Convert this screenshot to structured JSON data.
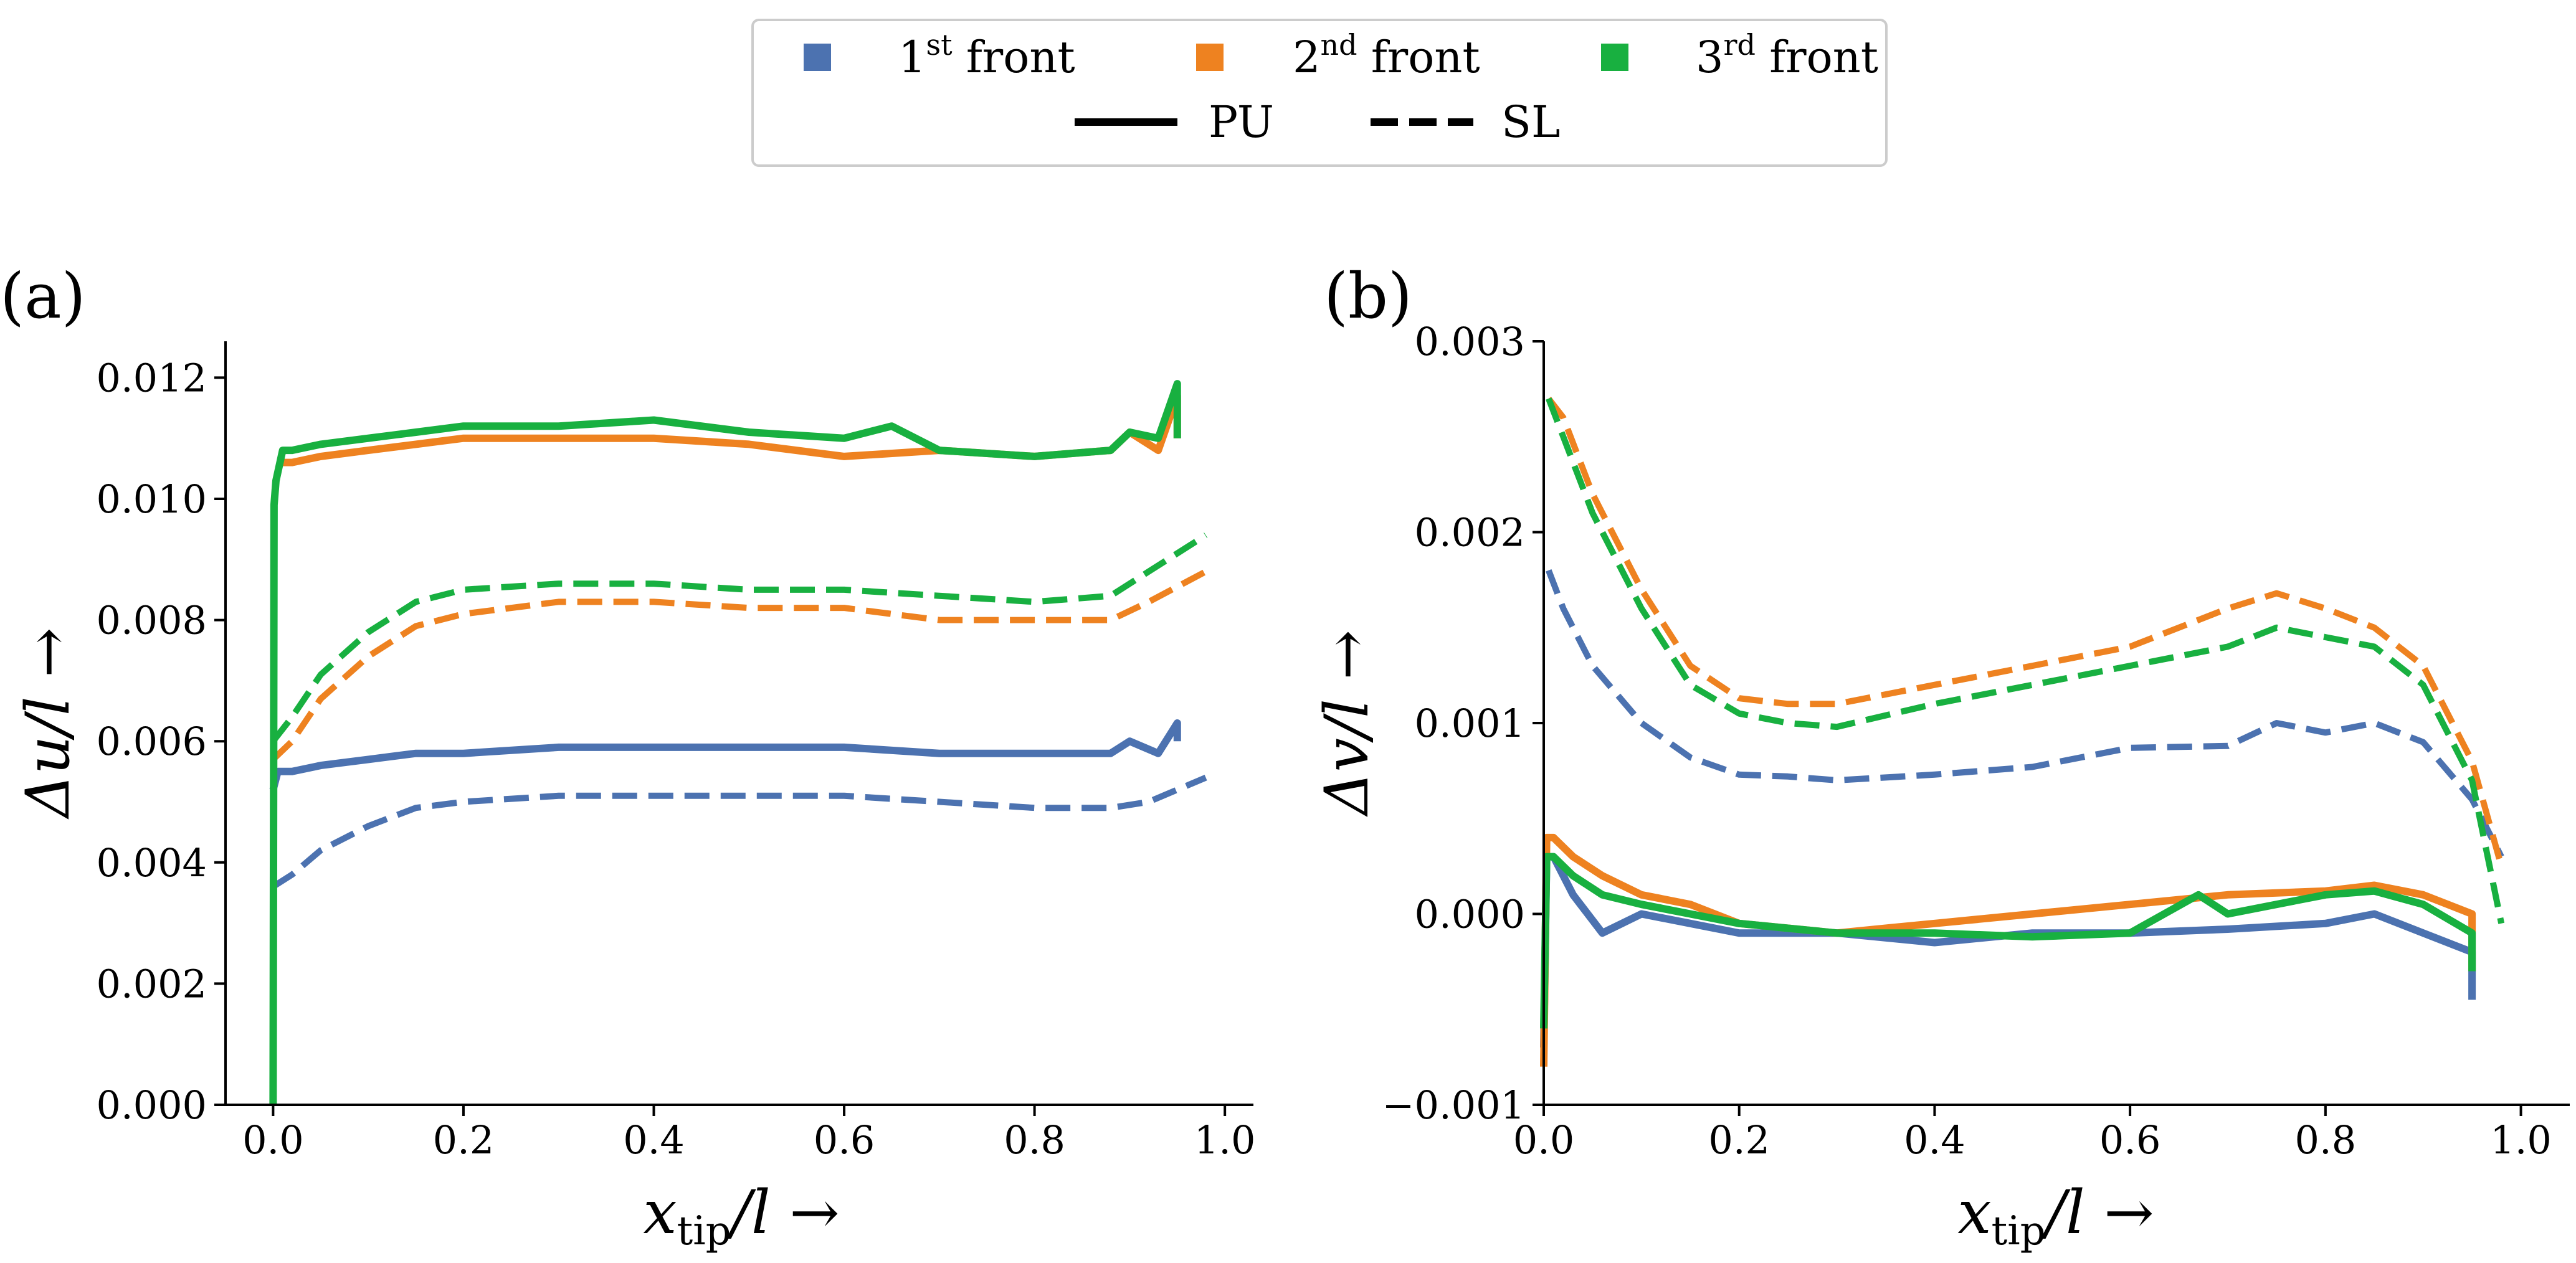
{
  "legend": {
    "fronts": [
      {
        "ord": "1",
        "sup": "st",
        "rest": " front",
        "color": "#4c72b0"
      },
      {
        "ord": "2",
        "sup": "nd",
        "rest": " front",
        "color": "#ee8220"
      },
      {
        "ord": "3",
        "sup": "rd",
        "rest": " front",
        "color": "#18b040"
      }
    ],
    "styles": [
      {
        "label": "PU",
        "dash": "solid"
      },
      {
        "label": "SL",
        "dash": "dashed"
      }
    ]
  },
  "chart_data": [
    {
      "type": "line",
      "panel_label": "(a)",
      "xlabel_main": "x",
      "xlabel_sub": "tip",
      "xlabel_rest": "/l →",
      "ylabel": "Δu/l →",
      "xlim": [
        -0.05,
        1.03
      ],
      "ylim": [
        0.0,
        0.0126
      ],
      "xticks": [
        "0.0",
        "0.2",
        "0.4",
        "0.6",
        "0.8",
        "1.0"
      ],
      "xtick_values": [
        0.0,
        0.2,
        0.4,
        0.6,
        0.8,
        1.0
      ],
      "yticks": [
        "0.000",
        "0.002",
        "0.004",
        "0.006",
        "0.008",
        "0.010",
        "0.012"
      ],
      "ytick_values": [
        0.0,
        0.002,
        0.004,
        0.006,
        0.008,
        0.01,
        0.012
      ],
      "series": [
        {
          "name": "1st front SL",
          "front": 1,
          "style": "dashed",
          "x": [
            0.0,
            0.02,
            0.05,
            0.1,
            0.15,
            0.2,
            0.3,
            0.4,
            0.5,
            0.6,
            0.7,
            0.8,
            0.88,
            0.92,
            0.98
          ],
          "y": [
            0.0036,
            0.0038,
            0.0042,
            0.0046,
            0.0049,
            0.005,
            0.0051,
            0.0051,
            0.0051,
            0.0051,
            0.005,
            0.0049,
            0.0049,
            0.005,
            0.0054
          ]
        },
        {
          "name": "2nd front SL",
          "front": 2,
          "style": "dashed",
          "x": [
            0.0,
            0.02,
            0.05,
            0.1,
            0.15,
            0.2,
            0.3,
            0.4,
            0.5,
            0.6,
            0.7,
            0.8,
            0.88,
            0.92,
            0.98
          ],
          "y": [
            0.0057,
            0.006,
            0.0067,
            0.0074,
            0.0079,
            0.0081,
            0.0083,
            0.0083,
            0.0082,
            0.0082,
            0.008,
            0.008,
            0.008,
            0.0083,
            0.0088
          ]
        },
        {
          "name": "3rd front SL",
          "front": 3,
          "style": "dashed",
          "x": [
            0.0,
            0.02,
            0.05,
            0.1,
            0.15,
            0.2,
            0.3,
            0.4,
            0.5,
            0.6,
            0.7,
            0.8,
            0.88,
            0.92,
            0.98
          ],
          "y": [
            0.006,
            0.0064,
            0.0071,
            0.0078,
            0.0083,
            0.0085,
            0.0086,
            0.0086,
            0.0085,
            0.0085,
            0.0084,
            0.0083,
            0.0084,
            0.0088,
            0.0094
          ]
        },
        {
          "name": "1st front PU",
          "front": 1,
          "style": "solid",
          "x": [
            0.0,
            0.005,
            0.02,
            0.05,
            0.1,
            0.15,
            0.2,
            0.3,
            0.4,
            0.5,
            0.6,
            0.7,
            0.8,
            0.88,
            0.9,
            0.93,
            0.95,
            0.95
          ],
          "y": [
            0.0052,
            0.0055,
            0.0055,
            0.0056,
            0.0057,
            0.0058,
            0.0058,
            0.0059,
            0.0059,
            0.0059,
            0.0059,
            0.0058,
            0.0058,
            0.0058,
            0.006,
            0.0058,
            0.0063,
            0.006
          ]
        },
        {
          "name": "2nd front PU",
          "front": 2,
          "style": "solid",
          "x": [
            0.005,
            0.02,
            0.05,
            0.1,
            0.15,
            0.2,
            0.3,
            0.4,
            0.5,
            0.6,
            0.7,
            0.8,
            0.88,
            0.9,
            0.93,
            0.95,
            0.95
          ],
          "y": [
            0.0106,
            0.0106,
            0.0107,
            0.0108,
            0.0109,
            0.011,
            0.011,
            0.011,
            0.0109,
            0.0107,
            0.0108,
            0.0107,
            0.0108,
            0.0111,
            0.0108,
            0.0117,
            0.011
          ]
        },
        {
          "name": "3rd front PU",
          "front": 3,
          "style": "solid",
          "x": [
            0.0,
            0.001,
            0.003,
            0.01,
            0.02,
            0.05,
            0.1,
            0.15,
            0.2,
            0.3,
            0.4,
            0.5,
            0.6,
            0.65,
            0.7,
            0.8,
            0.88,
            0.9,
            0.93,
            0.95,
            0.95
          ],
          "y": [
            0.0,
            0.0099,
            0.0103,
            0.0108,
            0.0108,
            0.0109,
            0.011,
            0.0111,
            0.0112,
            0.0112,
            0.0113,
            0.0111,
            0.011,
            0.0112,
            0.0108,
            0.0107,
            0.0108,
            0.0111,
            0.011,
            0.0119,
            0.011
          ]
        }
      ]
    },
    {
      "type": "line",
      "panel_label": "(b)",
      "xlabel_main": "x",
      "xlabel_sub": "tip",
      "xlabel_rest": "/l →",
      "ylabel": "Δv/l →",
      "xlim": [
        0.0,
        1.05
      ],
      "ylim": [
        -0.001,
        0.003
      ],
      "xticks": [
        "0.0",
        "0.2",
        "0.4",
        "0.6",
        "0.8",
        "1.0"
      ],
      "xtick_values": [
        0.0,
        0.2,
        0.4,
        0.6,
        0.8,
        1.0
      ],
      "yticks": [
        "−0.001",
        "0.000",
        "0.001",
        "0.002",
        "0.003"
      ],
      "ytick_values": [
        -0.001,
        0.0,
        0.001,
        0.002,
        0.003
      ],
      "series": [
        {
          "name": "1st front SL",
          "front": 1,
          "style": "dashed",
          "x": [
            0.005,
            0.02,
            0.05,
            0.1,
            0.15,
            0.2,
            0.25,
            0.3,
            0.4,
            0.5,
            0.6,
            0.7,
            0.75,
            0.8,
            0.85,
            0.9,
            0.95,
            0.98
          ],
          "y": [
            0.0018,
            0.0016,
            0.0013,
            0.001,
            0.00082,
            0.00073,
            0.00072,
            0.0007,
            0.00073,
            0.00077,
            0.00087,
            0.00088,
            0.001,
            0.00095,
            0.001,
            0.0009,
            0.0006,
            0.0003
          ]
        },
        {
          "name": "2nd front SL",
          "front": 2,
          "style": "dashed",
          "x": [
            0.005,
            0.02,
            0.05,
            0.1,
            0.15,
            0.2,
            0.25,
            0.3,
            0.4,
            0.5,
            0.6,
            0.7,
            0.75,
            0.8,
            0.85,
            0.9,
            0.95,
            0.98
          ],
          "y": [
            0.0027,
            0.0026,
            0.0022,
            0.0017,
            0.0013,
            0.00113,
            0.0011,
            0.0011,
            0.0012,
            0.0013,
            0.0014,
            0.0016,
            0.00168,
            0.0016,
            0.0015,
            0.0013,
            0.0008,
            0.00025
          ]
        },
        {
          "name": "3rd front SL",
          "front": 3,
          "style": "dashed",
          "x": [
            0.005,
            0.02,
            0.05,
            0.1,
            0.15,
            0.2,
            0.25,
            0.3,
            0.4,
            0.5,
            0.6,
            0.7,
            0.75,
            0.8,
            0.85,
            0.9,
            0.95,
            0.98
          ],
          "y": [
            0.0027,
            0.0025,
            0.0021,
            0.0016,
            0.0012,
            0.00105,
            0.001,
            0.00098,
            0.0011,
            0.0012,
            0.0013,
            0.0014,
            0.0015,
            0.00145,
            0.0014,
            0.0012,
            0.0007,
            -5e-05
          ]
        },
        {
          "name": "1st front PU",
          "front": 1,
          "style": "solid",
          "x": [
            0.0,
            0.003,
            0.01,
            0.03,
            0.06,
            0.1,
            0.15,
            0.2,
            0.3,
            0.4,
            0.5,
            0.6,
            0.7,
            0.8,
            0.85,
            0.9,
            0.95,
            0.95
          ],
          "y": [
            -0.0007,
            0.0003,
            0.0003,
            0.0001,
            -0.0001,
            0.0,
            -5e-05,
            -0.0001,
            -0.0001,
            -0.00015,
            -0.0001,
            -0.0001,
            -8e-05,
            -5e-05,
            0.0,
            -0.0001,
            -0.0002,
            -0.00045
          ]
        },
        {
          "name": "2nd front PU",
          "front": 2,
          "style": "solid",
          "x": [
            0.0,
            0.003,
            0.01,
            0.03,
            0.06,
            0.1,
            0.15,
            0.2,
            0.3,
            0.4,
            0.5,
            0.6,
            0.7,
            0.8,
            0.85,
            0.9,
            0.95,
            0.95
          ],
          "y": [
            -0.0008,
            0.0004,
            0.0004,
            0.0003,
            0.0002,
            0.0001,
            5e-05,
            -5e-05,
            -0.0001,
            -5e-05,
            0.0,
            5e-05,
            0.0001,
            0.00012,
            0.00015,
            0.0001,
            0.0,
            -0.0003
          ]
        },
        {
          "name": "3rd front PU",
          "front": 3,
          "style": "solid",
          "x": [
            0.0,
            0.003,
            0.01,
            0.03,
            0.06,
            0.1,
            0.15,
            0.2,
            0.3,
            0.4,
            0.5,
            0.6,
            0.67,
            0.7,
            0.8,
            0.85,
            0.9,
            0.95,
            0.95
          ],
          "y": [
            -0.0006,
            0.0003,
            0.0003,
            0.0002,
            0.0001,
            5e-05,
            0.0,
            -5e-05,
            -0.0001,
            -0.0001,
            -0.00012,
            -0.0001,
            0.0001,
            0.0,
            0.0001,
            0.00012,
            5e-05,
            -0.0001,
            -0.0003
          ]
        }
      ]
    }
  ]
}
